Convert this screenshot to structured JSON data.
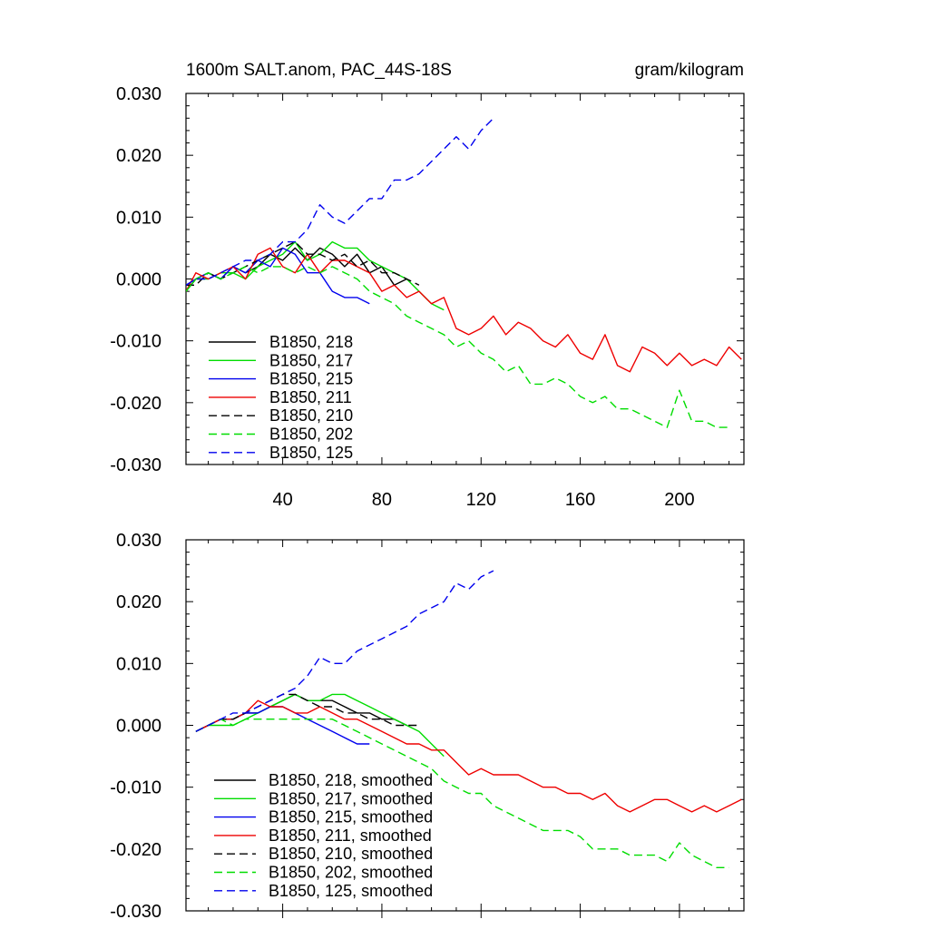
{
  "header": {
    "title": "1600m SALT.anom, PAC_44S-18S",
    "units": "gram/kilogram"
  },
  "chart_data": [
    {
      "type": "line",
      "xlim": [
        1,
        226
      ],
      "ylim": [
        -0.03,
        0.03
      ],
      "xticks": [
        40,
        80,
        120,
        160,
        200
      ],
      "yticks": [
        0.03,
        0.02,
        0.01,
        0.0,
        -0.01,
        -0.02,
        -0.03
      ],
      "ytick_labels": [
        "0.030",
        "0.020",
        "0.010",
        "0.000",
        "-0.010",
        "-0.020",
        "-0.030"
      ],
      "xtick_labels": [
        "40",
        "80",
        "120",
        "160",
        "200"
      ],
      "legend_position": "bottom-left",
      "series": [
        {
          "name": "B1850, 218",
          "color": "#000000",
          "dash": "solid",
          "x": [
            1,
            5,
            10,
            15,
            20,
            25,
            30,
            35,
            40,
            45,
            50,
            55,
            60,
            65,
            70,
            75,
            80,
            85,
            90
          ],
          "y": [
            -0.002,
            0.0,
            0.001,
            0.0,
            0.002,
            0.001,
            0.002,
            0.004,
            0.003,
            0.005,
            0.003,
            0.005,
            0.004,
            0.002,
            0.004,
            0.001,
            0.002,
            -0.001,
            0.0
          ]
        },
        {
          "name": "B1850, 217",
          "color": "#00dd00",
          "dash": "solid",
          "x": [
            1,
            5,
            10,
            15,
            20,
            25,
            30,
            35,
            40,
            45,
            50,
            55,
            60,
            65,
            70,
            75,
            80,
            85,
            90,
            95,
            100,
            105
          ],
          "y": [
            -0.002,
            0.0,
            0.0,
            0.001,
            0.001,
            0.0,
            0.002,
            0.003,
            0.004,
            0.006,
            0.003,
            0.004,
            0.006,
            0.005,
            0.005,
            0.003,
            0.002,
            0.001,
            0.0,
            -0.002,
            -0.004,
            -0.005
          ]
        },
        {
          "name": "B1850, 215",
          "color": "#0000ee",
          "dash": "solid",
          "x": [
            1,
            5,
            10,
            15,
            20,
            25,
            30,
            35,
            40,
            45,
            50,
            55,
            60,
            65,
            70,
            75
          ],
          "y": [
            -0.001,
            0.0,
            0.001,
            0.0,
            0.002,
            0.001,
            0.003,
            0.002,
            0.005,
            0.004,
            0.001,
            0.001,
            -0.002,
            -0.003,
            -0.003,
            -0.004
          ]
        },
        {
          "name": "B1850, 211",
          "color": "#ee0000",
          "dash": "solid",
          "x": [
            1,
            5,
            10,
            15,
            20,
            25,
            30,
            35,
            40,
            45,
            50,
            55,
            60,
            65,
            70,
            75,
            80,
            85,
            90,
            95,
            100,
            105,
            110,
            115,
            120,
            125,
            130,
            135,
            140,
            145,
            150,
            155,
            160,
            165,
            170,
            175,
            180,
            185,
            190,
            195,
            200,
            205,
            210,
            215,
            220,
            225
          ],
          "y": [
            -0.002,
            0.001,
            0.0,
            0.001,
            0.002,
            0.0,
            0.004,
            0.005,
            0.002,
            0.001,
            0.004,
            0.001,
            0.003,
            0.003,
            0.002,
            0.001,
            -0.002,
            -0.001,
            -0.003,
            -0.002,
            -0.004,
            -0.003,
            -0.008,
            -0.009,
            -0.008,
            -0.006,
            -0.009,
            -0.007,
            -0.008,
            -0.01,
            -0.011,
            -0.009,
            -0.012,
            -0.013,
            -0.009,
            -0.014,
            -0.015,
            -0.011,
            -0.012,
            -0.014,
            -0.012,
            -0.014,
            -0.013,
            -0.014,
            -0.011,
            -0.013
          ]
        },
        {
          "name": "B1850, 210",
          "color": "#000000",
          "dash": "dashed",
          "x": [
            1,
            5,
            10,
            15,
            20,
            25,
            30,
            35,
            40,
            45,
            50,
            55,
            60,
            65,
            70,
            75,
            80,
            85,
            90,
            95
          ],
          "y": [
            -0.001,
            -0.001,
            0.001,
            0.0,
            0.001,
            0.002,
            0.003,
            0.004,
            0.005,
            0.006,
            0.004,
            0.004,
            0.003,
            0.004,
            0.002,
            0.003,
            0.001,
            0.001,
            0.0,
            -0.001
          ]
        },
        {
          "name": "B1850, 202",
          "color": "#00dd00",
          "dash": "dashed",
          "x": [
            1,
            5,
            10,
            15,
            20,
            25,
            30,
            35,
            40,
            45,
            50,
            55,
            60,
            65,
            70,
            75,
            80,
            85,
            90,
            95,
            100,
            105,
            110,
            115,
            120,
            125,
            130,
            135,
            140,
            145,
            150,
            155,
            160,
            165,
            170,
            175,
            180,
            185,
            190,
            195,
            200,
            205,
            210,
            215,
            220
          ],
          "y": [
            -0.002,
            0.0,
            0.001,
            0.0,
            0.001,
            0.002,
            0.001,
            0.002,
            0.002,
            0.001,
            0.002,
            0.001,
            0.002,
            0.001,
            0.0,
            -0.002,
            -0.003,
            -0.004,
            -0.006,
            -0.007,
            -0.008,
            -0.009,
            -0.011,
            -0.01,
            -0.012,
            -0.013,
            -0.015,
            -0.014,
            -0.017,
            -0.017,
            -0.016,
            -0.017,
            -0.019,
            -0.02,
            -0.019,
            -0.021,
            -0.021,
            -0.022,
            -0.023,
            -0.024,
            -0.018,
            -0.023,
            -0.023,
            -0.024,
            -0.024
          ]
        },
        {
          "name": "B1850, 125",
          "color": "#0000ee",
          "dash": "dashed",
          "x": [
            1,
            5,
            10,
            15,
            20,
            25,
            30,
            35,
            40,
            45,
            50,
            55,
            60,
            65,
            70,
            75,
            80,
            85,
            90,
            95,
            100,
            105,
            110,
            115,
            120,
            125
          ],
          "y": [
            -0.001,
            0.0,
            0.0,
            0.001,
            0.002,
            0.003,
            0.003,
            0.004,
            0.006,
            0.006,
            0.008,
            0.012,
            0.01,
            0.009,
            0.011,
            0.013,
            0.013,
            0.016,
            0.016,
            0.017,
            0.019,
            0.021,
            0.023,
            0.021,
            0.024,
            0.026
          ]
        }
      ]
    },
    {
      "type": "line",
      "xlim": [
        1,
        226
      ],
      "ylim": [
        -0.03,
        0.03
      ],
      "xticks": [
        40,
        80,
        120,
        160,
        200
      ],
      "yticks": [
        0.03,
        0.02,
        0.01,
        0.0,
        -0.01,
        -0.02,
        -0.03
      ],
      "ytick_labels": [
        "0.030",
        "0.020",
        "0.010",
        "0.000",
        "-0.010",
        "-0.020",
        "-0.030"
      ],
      "legend_position": "bottom-left",
      "series": [
        {
          "name": "B1850, 218, smoothed",
          "color": "#000000",
          "dash": "solid",
          "x": [
            5,
            10,
            15,
            20,
            25,
            30,
            35,
            40,
            45,
            50,
            55,
            60,
            65,
            70,
            75,
            80,
            85,
            90
          ],
          "y": [
            -0.001,
            0.0,
            0.001,
            0.001,
            0.002,
            0.002,
            0.003,
            0.004,
            0.005,
            0.004,
            0.004,
            0.004,
            0.003,
            0.002,
            0.002,
            0.001,
            0.001,
            0.0
          ]
        },
        {
          "name": "B1850, 217, smoothed",
          "color": "#00dd00",
          "dash": "solid",
          "x": [
            5,
            10,
            15,
            20,
            25,
            30,
            35,
            40,
            45,
            50,
            55,
            60,
            65,
            70,
            75,
            80,
            85,
            90,
            95,
            100,
            105
          ],
          "y": [
            -0.001,
            0.0,
            0.0,
            0.0,
            0.001,
            0.002,
            0.003,
            0.004,
            0.005,
            0.004,
            0.004,
            0.005,
            0.005,
            0.004,
            0.003,
            0.002,
            0.001,
            0.0,
            -0.001,
            -0.003,
            -0.005
          ]
        },
        {
          "name": "B1850, 215, smoothed",
          "color": "#0000ee",
          "dash": "solid",
          "x": [
            5,
            10,
            15,
            20,
            25,
            30,
            35,
            40,
            45,
            50,
            55,
            60,
            65,
            70,
            75
          ],
          "y": [
            -0.001,
            0.0,
            0.001,
            0.001,
            0.002,
            0.002,
            0.003,
            0.003,
            0.002,
            0.001,
            0.0,
            -0.001,
            -0.002,
            -0.003,
            -0.003
          ]
        },
        {
          "name": "B1850, 211, smoothed",
          "color": "#ee0000",
          "dash": "solid",
          "x": [
            5,
            10,
            15,
            20,
            25,
            30,
            35,
            40,
            45,
            50,
            55,
            60,
            65,
            70,
            75,
            80,
            85,
            90,
            95,
            100,
            105,
            110,
            115,
            120,
            125,
            130,
            135,
            140,
            145,
            150,
            155,
            160,
            165,
            170,
            175,
            180,
            185,
            190,
            195,
            200,
            205,
            210,
            215,
            220,
            225
          ],
          "y": [
            -0.001,
            0.0,
            0.001,
            0.001,
            0.002,
            0.004,
            0.003,
            0.003,
            0.002,
            0.002,
            0.003,
            0.002,
            0.001,
            0.001,
            0.0,
            -0.001,
            -0.002,
            -0.003,
            -0.003,
            -0.004,
            -0.004,
            -0.006,
            -0.008,
            -0.007,
            -0.008,
            -0.008,
            -0.008,
            -0.009,
            -0.01,
            -0.01,
            -0.011,
            -0.011,
            -0.012,
            -0.011,
            -0.013,
            -0.014,
            -0.013,
            -0.012,
            -0.012,
            -0.013,
            -0.014,
            -0.013,
            -0.014,
            -0.013,
            -0.012
          ]
        },
        {
          "name": "B1850, 210, smoothed",
          "color": "#000000",
          "dash": "dashed",
          "x": [
            5,
            10,
            15,
            20,
            25,
            30,
            35,
            40,
            45,
            50,
            55,
            60,
            65,
            70,
            75,
            80,
            85,
            90,
            95
          ],
          "y": [
            -0.001,
            0.0,
            0.001,
            0.001,
            0.002,
            0.003,
            0.004,
            0.005,
            0.005,
            0.004,
            0.003,
            0.003,
            0.002,
            0.002,
            0.001,
            0.001,
            0.0,
            0.0,
            0.0
          ]
        },
        {
          "name": "B1850, 202, smoothed",
          "color": "#00dd00",
          "dash": "dashed",
          "x": [
            5,
            10,
            15,
            20,
            25,
            30,
            35,
            40,
            45,
            50,
            55,
            60,
            65,
            70,
            75,
            80,
            85,
            90,
            95,
            100,
            105,
            110,
            115,
            120,
            125,
            130,
            135,
            140,
            145,
            150,
            155,
            160,
            165,
            170,
            175,
            180,
            185,
            190,
            195,
            200,
            205,
            210,
            215,
            220
          ],
          "y": [
            -0.001,
            0.0,
            0.001,
            0.0,
            0.001,
            0.001,
            0.001,
            0.001,
            0.001,
            0.001,
            0.001,
            0.001,
            0.0,
            -0.001,
            -0.002,
            -0.003,
            -0.004,
            -0.005,
            -0.006,
            -0.007,
            -0.009,
            -0.01,
            -0.011,
            -0.011,
            -0.013,
            -0.014,
            -0.015,
            -0.016,
            -0.017,
            -0.017,
            -0.017,
            -0.018,
            -0.02,
            -0.02,
            -0.02,
            -0.021,
            -0.021,
            -0.021,
            -0.022,
            -0.019,
            -0.021,
            -0.022,
            -0.023,
            -0.023
          ]
        },
        {
          "name": "B1850, 125, smoothed",
          "color": "#0000ee",
          "dash": "dashed",
          "x": [
            5,
            10,
            15,
            20,
            25,
            30,
            35,
            40,
            45,
            50,
            55,
            60,
            65,
            70,
            75,
            80,
            85,
            90,
            95,
            100,
            105,
            110,
            115,
            120,
            125
          ],
          "y": [
            -0.001,
            0.0,
            0.001,
            0.002,
            0.002,
            0.003,
            0.004,
            0.005,
            0.006,
            0.008,
            0.011,
            0.01,
            0.01,
            0.012,
            0.013,
            0.014,
            0.015,
            0.016,
            0.018,
            0.019,
            0.02,
            0.023,
            0.022,
            0.024,
            0.025
          ]
        }
      ]
    }
  ]
}
